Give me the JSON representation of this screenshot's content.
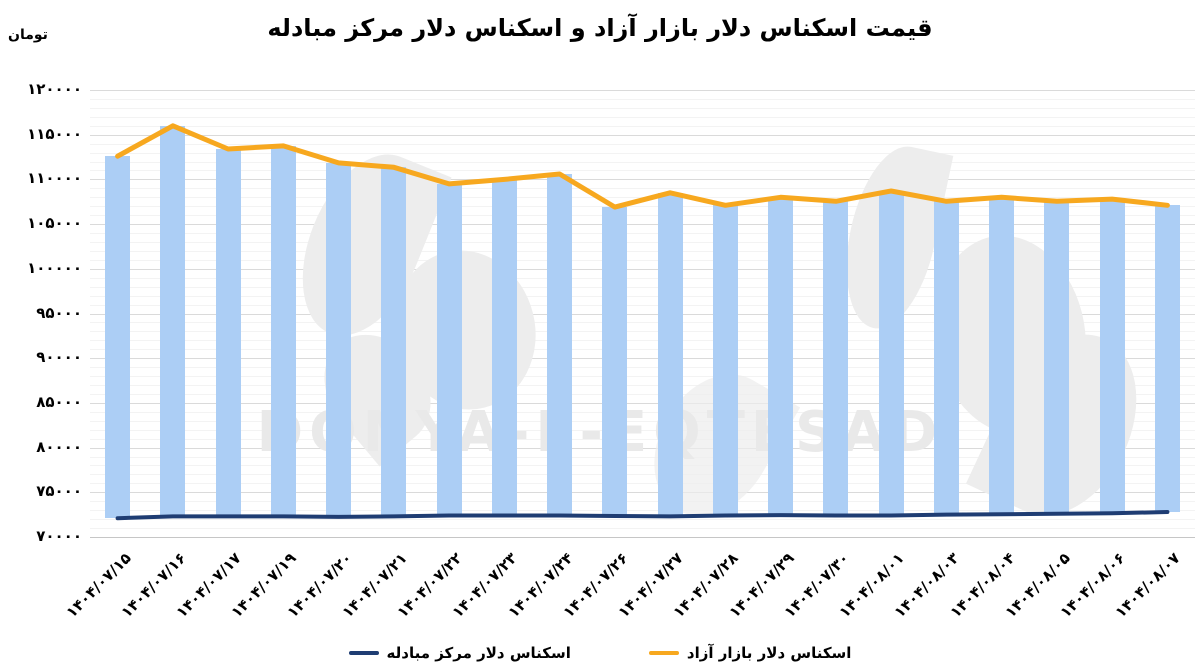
{
  "title": "قیمت اسکناس دلار بازار آزاد و اسکناس دلار مرکز مبادله",
  "y_unit_label": "تومان",
  "watermark_text": "DONYA-E-EQTESAD",
  "legend": {
    "exchange_center_label": "اسکناس دلار مرکز مبادله",
    "free_market_label": "اسکناس دلار بازار آزاد"
  },
  "colors": {
    "bar": "#ACCEF5",
    "free_market_line": "#F7A81F",
    "exchange_center_line": "#1F3D73",
    "grid_major": "#DADADA",
    "grid_minor": "#F3F3F3",
    "axis_line": "#C6C6C6",
    "watermark": "#EDEDED",
    "text": "#000000"
  },
  "chart_data": {
    "type": "bar",
    "subtype": "floating-bars-with-overlaid-lines",
    "title": "قیمت اسکناس دلار بازار آزاد و اسکناس دلار مرکز مبادله",
    "ylabel": "تومان",
    "xlabel": "",
    "ylim": [
      70000,
      120000
    ],
    "ytick_step": 5000,
    "ytick_labels": [
      "۱۲۰۰۰۰",
      "۱۱۵۰۰۰",
      "۱۱۰۰۰۰",
      "۱۰۵۰۰۰",
      "۱۰۰۰۰۰",
      "۹۵۰۰۰",
      "۹۰۰۰۰",
      "۸۵۰۰۰",
      "۸۰۰۰۰",
      "۷۵۰۰۰",
      "۷۰۰۰۰"
    ],
    "grid": "horizontal major+minor",
    "legend_position": "bottom-center",
    "categories": [
      "۱۴۰۴/۰۷/۱۵",
      "۱۴۰۴/۰۷/۱۶",
      "۱۴۰۴/۰۷/۱۷",
      "۱۴۰۴/۰۷/۱۹",
      "۱۴۰۴/۰۷/۲۰",
      "۱۴۰۴/۰۷/۲۱",
      "۱۴۰۴/۰۷/۲۲",
      "۱۴۰۴/۰۷/۲۳",
      "۱۴۰۴/۰۷/۲۴",
      "۱۴۰۴/۰۷/۲۶",
      "۱۴۰۴/۰۷/۲۷",
      "۱۴۰۴/۰۷/۲۸",
      "۱۴۰۴/۰۷/۲۹",
      "۱۴۰۴/۰۷/۳۰",
      "۱۴۰۴/۰۸/۰۱",
      "۱۴۰۴/۰۸/۰۳",
      "۱۴۰۴/۰۸/۰۴",
      "۱۴۰۴/۰۸/۰۵",
      "۱۴۰۴/۰۸/۰۶",
      "۱۴۰۴/۰۸/۰۷"
    ],
    "series": [
      {
        "name": "اسکناس دلار بازار آزاد",
        "render": "orange line + light-blue bar tops",
        "values": [
          112600,
          116000,
          113400,
          113750,
          111850,
          111350,
          109500,
          110000,
          110600,
          106900,
          108500,
          107100,
          108000,
          107550,
          108700,
          107550,
          108000,
          107550,
          107800,
          107100
        ]
      },
      {
        "name": "اسکناس دلار مرکز مبادله",
        "render": "navy line (also bar bottoms)",
        "values": [
          72100,
          72300,
          72300,
          72300,
          72250,
          72300,
          72400,
          72400,
          72400,
          72350,
          72300,
          72400,
          72450,
          72400,
          72400,
          72500,
          72550,
          72600,
          72650,
          72800
        ]
      }
    ]
  }
}
